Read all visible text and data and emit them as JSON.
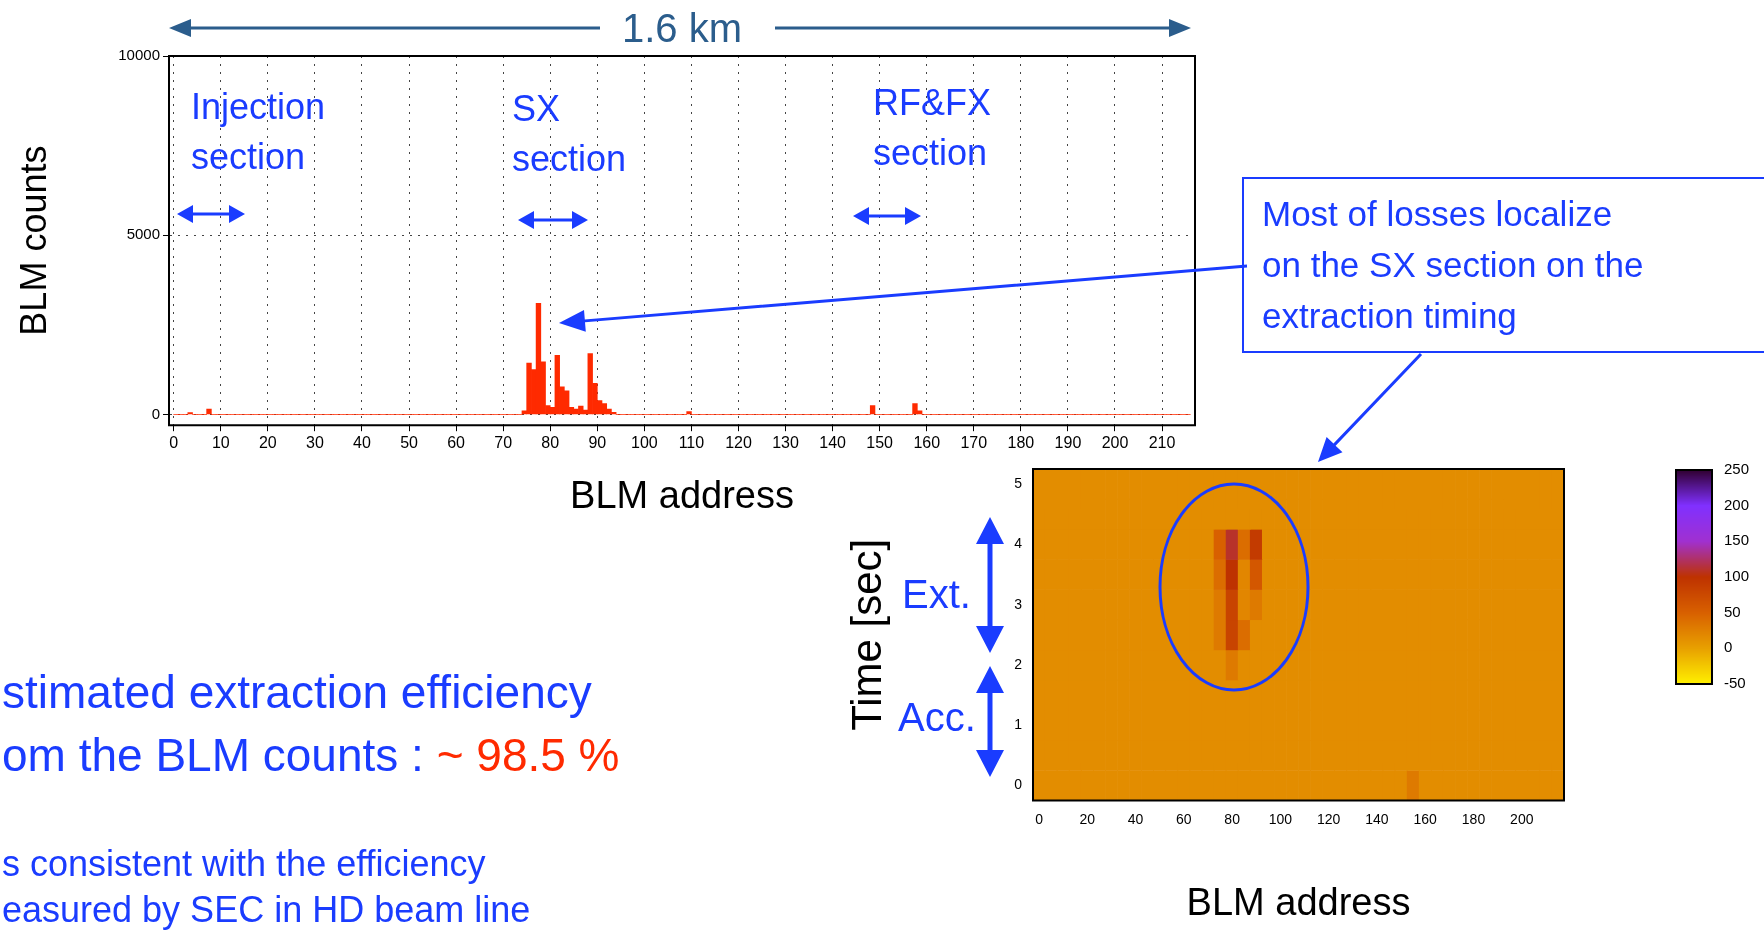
{
  "chart_data": [
    {
      "type": "histogram",
      "ylabel": "BLM counts",
      "xlabel": "BLM address",
      "color": "#ff2a00",
      "grid": true,
      "bins": [
        0,
        1,
        2,
        3,
        4,
        5,
        6,
        7,
        8,
        9,
        10,
        11,
        12,
        13,
        14,
        15,
        16,
        17,
        18,
        19,
        20,
        21,
        22,
        23,
        24,
        25,
        26,
        27,
        28,
        29,
        30,
        31,
        32,
        33,
        34,
        35,
        36,
        37,
        38,
        39,
        40,
        41,
        42,
        43,
        44,
        45,
        46,
        47,
        48,
        49,
        50,
        51,
        52,
        53,
        54,
        55,
        56,
        57,
        58,
        59,
        60,
        61,
        62,
        63,
        64,
        65,
        66,
        67,
        68,
        69,
        70,
        71,
        72,
        73,
        74,
        75,
        76,
        77,
        78,
        79,
        80,
        81,
        82,
        83,
        84,
        85,
        86,
        87,
        88,
        89,
        90,
        91,
        92,
        93,
        94,
        95,
        96,
        97,
        98,
        99,
        100,
        101,
        102,
        103,
        104,
        105,
        106,
        107,
        108,
        109,
        110,
        111,
        112,
        113,
        114,
        115,
        116,
        117,
        118,
        119,
        120,
        121,
        122,
        123,
        124,
        125,
        126,
        127,
        128,
        129,
        130,
        131,
        132,
        133,
        134,
        135,
        136,
        137,
        138,
        139,
        140,
        141,
        142,
        143,
        144,
        145,
        146,
        147,
        148,
        149,
        150,
        151,
        152,
        153,
        154,
        155,
        156,
        157,
        158,
        159,
        160,
        161,
        162,
        163,
        164,
        165,
        166,
        167,
        168,
        169,
        170,
        171,
        172,
        173,
        174,
        175,
        176,
        177,
        178,
        179,
        180,
        181,
        182,
        183,
        184,
        185,
        186,
        187,
        188,
        189,
        190,
        191,
        192,
        193,
        194,
        195,
        196,
        197,
        198,
        199,
        200,
        201,
        202,
        203,
        204,
        205,
        206,
        207,
        208,
        209,
        210,
        211,
        212,
        213,
        214,
        215,
        216
      ],
      "values": [
        0,
        0,
        0,
        50,
        0,
        0,
        0,
        150,
        0,
        0,
        0,
        0,
        0,
        0,
        0,
        0,
        0,
        0,
        0,
        0,
        0,
        0,
        0,
        0,
        0,
        0,
        0,
        0,
        0,
        0,
        0,
        0,
        0,
        0,
        0,
        0,
        0,
        0,
        0,
        0,
        0,
        0,
        0,
        0,
        0,
        0,
        0,
        0,
        0,
        0,
        0,
        0,
        0,
        0,
        0,
        0,
        0,
        0,
        0,
        0,
        0,
        0,
        0,
        0,
        0,
        0,
        0,
        0,
        0,
        0,
        0,
        0,
        0,
        0,
        100,
        1430,
        1250,
        3100,
        1470,
        250,
        200,
        1650,
        770,
        660,
        200,
        150,
        230,
        120,
        1700,
        870,
        390,
        300,
        150,
        60,
        0,
        0,
        0,
        0,
        0,
        0,
        0,
        0,
        0,
        0,
        0,
        0,
        0,
        0,
        0,
        80,
        0,
        0,
        0,
        0,
        0,
        0,
        0,
        0,
        0,
        0,
        0,
        0,
        0,
        0,
        0,
        0,
        0,
        0,
        0,
        0,
        0,
        0,
        0,
        0,
        0,
        0,
        0,
        0,
        0,
        0,
        0,
        0,
        0,
        0,
        0,
        0,
        0,
        0,
        250,
        0,
        0,
        0,
        0,
        0,
        0,
        0,
        0,
        300,
        100,
        0,
        0,
        0,
        0,
        0,
        0,
        0,
        0,
        0,
        0,
        0,
        0,
        0,
        0,
        0,
        0,
        0,
        0,
        0,
        0,
        0,
        0,
        0,
        0,
        0,
        0,
        0,
        0,
        0,
        0,
        0,
        0,
        0,
        0,
        0,
        0,
        0,
        0,
        0,
        0,
        0,
        0,
        0,
        0,
        0,
        0,
        0,
        0,
        0,
        0,
        0,
        0,
        0,
        0,
        0,
        0,
        0
      ],
      "xlim": [
        -1,
        217
      ],
      "xticks": [
        0,
        10,
        20,
        30,
        40,
        50,
        60,
        70,
        80,
        90,
        100,
        110,
        120,
        130,
        140,
        150,
        160,
        170,
        180,
        190,
        200,
        210
      ],
      "ylim": [
        -300,
        10000
      ],
      "yticks": [
        0,
        5000,
        10000
      ],
      "annotations": [
        "1.6 km",
        "Injection section",
        "SX section",
        "RF&FX section",
        "Most of losses localize on the SX section on the extraction timing",
        "stimated extraction efficiency om the BLM counts :",
        "~ 98.5 %",
        "s consistent with the efficiency easured by SEC in HD beam line"
      ]
    },
    {
      "type": "heatmap",
      "xlabel": "BLM address",
      "ylabel": "Time [sec]",
      "categories": [
        "0",
        null,
        null,
        null,
        "20",
        null,
        null,
        null,
        "40",
        null,
        null,
        null,
        "60",
        null,
        null,
        null,
        "80",
        null,
        null,
        null,
        "100",
        null,
        null,
        null,
        "120",
        null,
        null,
        null,
        "140",
        null,
        null,
        null,
        "160",
        null,
        null,
        null,
        "180",
        null,
        null,
        null,
        "200",
        null,
        null,
        null
      ],
      "y_categories": [
        "5",
        null,
        "4",
        null,
        "3",
        null,
        "2",
        null,
        "1",
        null,
        "0"
      ],
      "cells": [
        [
          15,
          15,
          15,
          15,
          15,
          15,
          15,
          15,
          15,
          15,
          15,
          15,
          15,
          15,
          15,
          15,
          15,
          15,
          15,
          15,
          15,
          15,
          15,
          15,
          15,
          15,
          15,
          15,
          15,
          15,
          15,
          15,
          15,
          15,
          15,
          15,
          15,
          15,
          15,
          15,
          15,
          15,
          15,
          15
        ],
        [
          15,
          15,
          15,
          15,
          15,
          15,
          15,
          15,
          15,
          15,
          15,
          15,
          15,
          15,
          15,
          15,
          15,
          15,
          15,
          15,
          15,
          15,
          15,
          15,
          15,
          15,
          15,
          15,
          15,
          15,
          15,
          15,
          15,
          15,
          15,
          15,
          15,
          15,
          15,
          15,
          15,
          15,
          15,
          15
        ],
        [
          15,
          15,
          15,
          15,
          15,
          15,
          15,
          15,
          15,
          15,
          15,
          15,
          15,
          15,
          15,
          50,
          110,
          40,
          90,
          15,
          15,
          15,
          15,
          15,
          15,
          15,
          15,
          15,
          15,
          15,
          15,
          15,
          15,
          15,
          15,
          15,
          15,
          15,
          15,
          15,
          15,
          15,
          15,
          15
        ],
        [
          15,
          15,
          15,
          15,
          15,
          15,
          15,
          15,
          15,
          15,
          15,
          15,
          15,
          15,
          15,
          40,
          100,
          20,
          60,
          15,
          15,
          15,
          15,
          15,
          15,
          15,
          15,
          15,
          15,
          15,
          15,
          15,
          15,
          15,
          15,
          15,
          15,
          15,
          15,
          15,
          15,
          15,
          15,
          15
        ],
        [
          15,
          15,
          15,
          15,
          15,
          15,
          15,
          15,
          15,
          15,
          15,
          15,
          15,
          15,
          15,
          30,
          80,
          20,
          30,
          15,
          15,
          15,
          15,
          15,
          15,
          15,
          15,
          15,
          15,
          15,
          15,
          15,
          15,
          15,
          15,
          15,
          15,
          15,
          15,
          15,
          15,
          15,
          15,
          15
        ],
        [
          15,
          15,
          15,
          15,
          15,
          15,
          15,
          15,
          15,
          15,
          15,
          15,
          15,
          15,
          15,
          30,
          80,
          40,
          15,
          15,
          15,
          15,
          15,
          15,
          15,
          15,
          15,
          15,
          15,
          15,
          15,
          15,
          15,
          15,
          15,
          15,
          15,
          15,
          15,
          15,
          15,
          15,
          15,
          15
        ],
        [
          15,
          15,
          15,
          15,
          15,
          15,
          15,
          15,
          15,
          15,
          15,
          15,
          15,
          15,
          15,
          15,
          30,
          15,
          15,
          15,
          15,
          15,
          15,
          15,
          15,
          15,
          15,
          15,
          15,
          15,
          15,
          15,
          15,
          15,
          15,
          15,
          15,
          15,
          15,
          15,
          15,
          15,
          15,
          15
        ],
        [
          15,
          15,
          15,
          15,
          15,
          15,
          15,
          15,
          15,
          15,
          15,
          15,
          15,
          15,
          15,
          15,
          15,
          15,
          15,
          15,
          15,
          15,
          15,
          15,
          15,
          15,
          15,
          15,
          15,
          15,
          15,
          15,
          15,
          15,
          15,
          15,
          15,
          15,
          15,
          15,
          15,
          15,
          15,
          15
        ],
        [
          15,
          15,
          15,
          15,
          15,
          15,
          15,
          15,
          15,
          15,
          15,
          15,
          15,
          15,
          15,
          15,
          15,
          15,
          15,
          15,
          15,
          15,
          15,
          15,
          15,
          15,
          15,
          15,
          15,
          15,
          15,
          15,
          15,
          15,
          15,
          15,
          15,
          15,
          15,
          15,
          15,
          15,
          15,
          15
        ],
        [
          15,
          15,
          15,
          15,
          15,
          15,
          15,
          15,
          15,
          15,
          15,
          15,
          15,
          15,
          15,
          15,
          15,
          15,
          15,
          15,
          15,
          15,
          15,
          15,
          15,
          15,
          15,
          15,
          15,
          15,
          15,
          15,
          15,
          15,
          15,
          15,
          15,
          15,
          15,
          15,
          15,
          15,
          15,
          15
        ],
        [
          15,
          15,
          15,
          15,
          15,
          15,
          15,
          15,
          15,
          15,
          15,
          15,
          15,
          15,
          15,
          15,
          15,
          15,
          15,
          15,
          15,
          15,
          15,
          15,
          15,
          15,
          15,
          15,
          15,
          15,
          15,
          30,
          15,
          15,
          15,
          15,
          15,
          15,
          15,
          15,
          15,
          15,
          15,
          15
        ]
      ],
      "clim": [
        -50,
        250
      ],
      "cticks": [
        -50,
        0,
        50,
        100,
        150,
        200,
        250
      ],
      "annotations": [
        "Ext.",
        "Acc."
      ]
    }
  ]
}
